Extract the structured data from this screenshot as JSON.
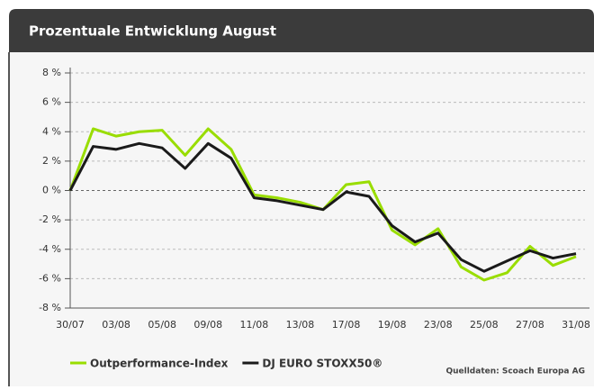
{
  "chart_data": {
    "type": "line",
    "title": "Prozentuale Entwicklung August",
    "categories": [
      "30/07",
      null,
      "03/08",
      null,
      "05/08",
      null,
      "09/08",
      null,
      "11/08",
      null,
      "13/08",
      null,
      "17/08",
      null,
      "19/08",
      null,
      "23/08",
      null,
      "25/08",
      null,
      "27/08",
      null,
      "31/08"
    ],
    "series": [
      {
        "name": "Outperformance-Index",
        "color": "#99dd00",
        "values": [
          0,
          4.2,
          3.7,
          4.0,
          4.1,
          2.4,
          4.2,
          2.8,
          -0.3,
          -0.5,
          -0.8,
          -1.3,
          0.4,
          0.6,
          -2.7,
          -3.7,
          -2.6,
          -5.2,
          -6.1,
          -5.6,
          -3.8,
          -5.1,
          -4.5
        ]
      },
      {
        "name": "DJ EURO STOXX50®",
        "color": "#1a1a1a",
        "values": [
          0,
          3.0,
          2.8,
          3.2,
          2.9,
          1.5,
          3.2,
          2.2,
          -0.5,
          -0.7,
          -1.0,
          -1.3,
          -0.1,
          -0.4,
          -2.4,
          -3.5,
          -2.9,
          -4.7,
          -5.5,
          -4.8,
          -4.1,
          -4.6,
          -4.3
        ]
      }
    ],
    "ylim": [
      -8,
      8
    ],
    "yticks": [
      {
        "value": -8,
        "label": "-8 %"
      },
      {
        "value": -6,
        "label": "-6 %"
      },
      {
        "value": -4,
        "label": "-4 %"
      },
      {
        "value": -2,
        "label": "-2 %"
      },
      {
        "value": 0,
        "label": "0 %"
      },
      {
        "value": 2,
        "label": "2 %"
      },
      {
        "value": 4,
        "label": "4 %"
      },
      {
        "value": 6,
        "label": "6 %"
      },
      {
        "value": 8,
        "label": "8 %"
      }
    ],
    "grid": true,
    "legend": "bottom",
    "source": "Quelldaten: Scoach Europa AG"
  }
}
